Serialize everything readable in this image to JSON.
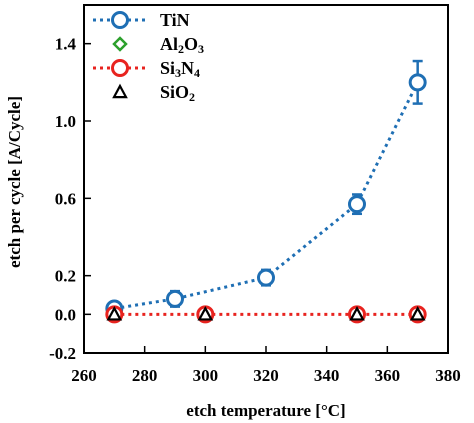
{
  "chart_data": {
    "type": "line",
    "xlabel": "etch temperature [°C]",
    "ylabel": "etch per cycle [A/Cycle]",
    "xlim": [
      260,
      380
    ],
    "ylim": [
      -0.2,
      1.6
    ],
    "x_ticks": [
      260,
      280,
      300,
      320,
      340,
      360,
      380
    ],
    "y_ticks": [
      -0.2,
      0.0,
      0.2,
      0.6,
      1.0,
      1.4
    ],
    "x_tick_labels": [
      "260",
      "280",
      "300",
      "320",
      "340",
      "360",
      "380"
    ],
    "y_tick_labels": [
      "-0.2",
      "0.0",
      "0.2",
      "0.6",
      "1.0",
      "1.4"
    ],
    "grid": false,
    "legend_position": "top-left",
    "series": [
      {
        "name": "TiN",
        "name_base": "TiN",
        "name_sub1": "",
        "name_mid": "",
        "name_sub2": "",
        "color": "#1f6fb4",
        "marker": "circle",
        "line": "dotted",
        "x": [
          270,
          290,
          320,
          350,
          370
        ],
        "y": [
          0.03,
          0.08,
          0.19,
          0.57,
          1.2
        ],
        "err": [
          0.02,
          0.04,
          0.04,
          0.05,
          0.11
        ]
      },
      {
        "name": "Al2O3",
        "name_base": "Al",
        "name_sub1": "2",
        "name_mid": "O",
        "name_sub2": "3",
        "color": "#2ca02c",
        "marker": "diamond",
        "line": "none",
        "x": [
          270,
          300,
          350,
          370
        ],
        "y": [
          0.0,
          0.0,
          0.0,
          0.0
        ],
        "err": []
      },
      {
        "name": "Si3N4",
        "name_base": "Si",
        "name_sub1": "3",
        "name_mid": "N",
        "name_sub2": "4",
        "color": "#e8231f",
        "marker": "circle",
        "line": "dotted",
        "x": [
          270,
          300,
          350,
          370
        ],
        "y": [
          0.0,
          0.0,
          0.0,
          0.0
        ],
        "err": []
      },
      {
        "name": "SiO2",
        "name_base": "SiO",
        "name_sub1": "2",
        "name_mid": "",
        "name_sub2": "",
        "color": "#000000",
        "marker": "triangle",
        "line": "none",
        "x": [
          270,
          300,
          350,
          370
        ],
        "y": [
          0.0,
          0.0,
          0.0,
          0.0
        ],
        "err": []
      }
    ]
  }
}
